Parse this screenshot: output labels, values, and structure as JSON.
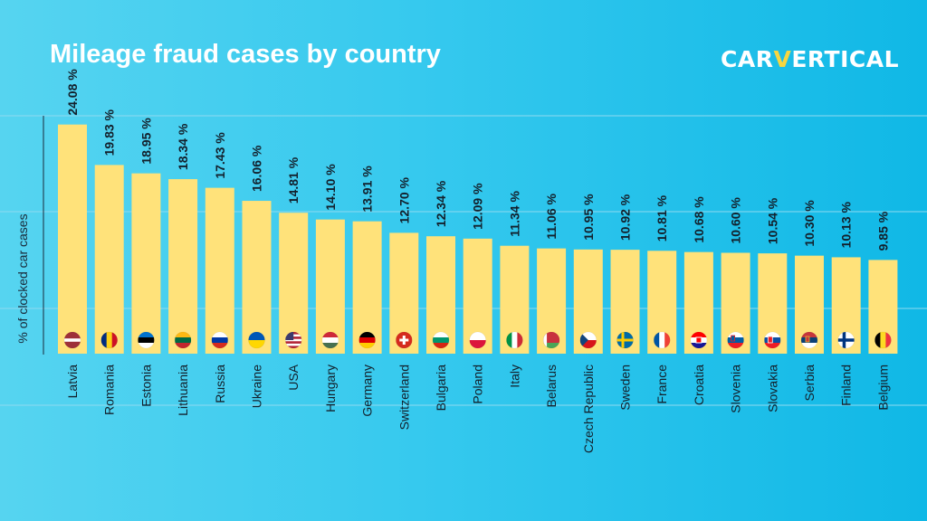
{
  "header": {
    "title": "Mileage fraud cases by country",
    "brand_prefix": "CAR",
    "brand_mark": "V",
    "brand_suffix": "ERTICAL"
  },
  "colors": {
    "bar": "#ffe27a",
    "gridline": "#8fdaf0",
    "axis": "#1a2a3a",
    "brand_accent": "#f7d640"
  },
  "chart_data": {
    "type": "bar",
    "ylabel": "% of clocked car cases",
    "value_suffix": " %",
    "grid": true,
    "categories": [
      "Latvia",
      "Romania",
      "Estonia",
      "Lithuania",
      "Russia",
      "Ukraine",
      "USA",
      "Hungary",
      "Germany",
      "Switzerland",
      "Bulgaria",
      "Poland",
      "Italy",
      "Belarus",
      "Czech Republic",
      "Sweden",
      "France",
      "Croatia",
      "Slovenia",
      "Slovakia",
      "Serbia",
      "Finland",
      "Belgium"
    ],
    "values": [
      24.08,
      19.83,
      18.95,
      18.34,
      17.43,
      16.06,
      14.81,
      14.1,
      13.91,
      12.7,
      12.34,
      12.09,
      11.34,
      11.06,
      10.95,
      10.92,
      10.81,
      10.68,
      10.6,
      10.54,
      10.3,
      10.13,
      9.85
    ],
    "value_labels": [
      "24.08",
      "19.83",
      "18.95",
      "18.34",
      "17.43",
      "16.06",
      "14.81",
      "14.10",
      "13.91",
      "12.70",
      "12.34",
      "12.09",
      "11.34",
      "11.06",
      "10.95",
      "10.92",
      "10.81",
      "10.68",
      "10.60",
      "10.54",
      "10.30",
      "10.13",
      "9.85"
    ],
    "flag_icons": [
      "latvia-flag-icon",
      "romania-flag-icon",
      "estonia-flag-icon",
      "lithuania-flag-icon",
      "russia-flag-icon",
      "ukraine-flag-icon",
      "usa-flag-icon",
      "hungary-flag-icon",
      "germany-flag-icon",
      "switzerland-flag-icon",
      "bulgaria-flag-icon",
      "poland-flag-icon",
      "italy-flag-icon",
      "belarus-flag-icon",
      "czech-republic-flag-icon",
      "sweden-flag-icon",
      "france-flag-icon",
      "croatia-flag-icon",
      "slovenia-flag-icon",
      "slovakia-flag-icon",
      "serbia-flag-icon",
      "finland-flag-icon",
      "belgium-flag-icon"
    ],
    "ylim": [
      0,
      28
    ]
  }
}
